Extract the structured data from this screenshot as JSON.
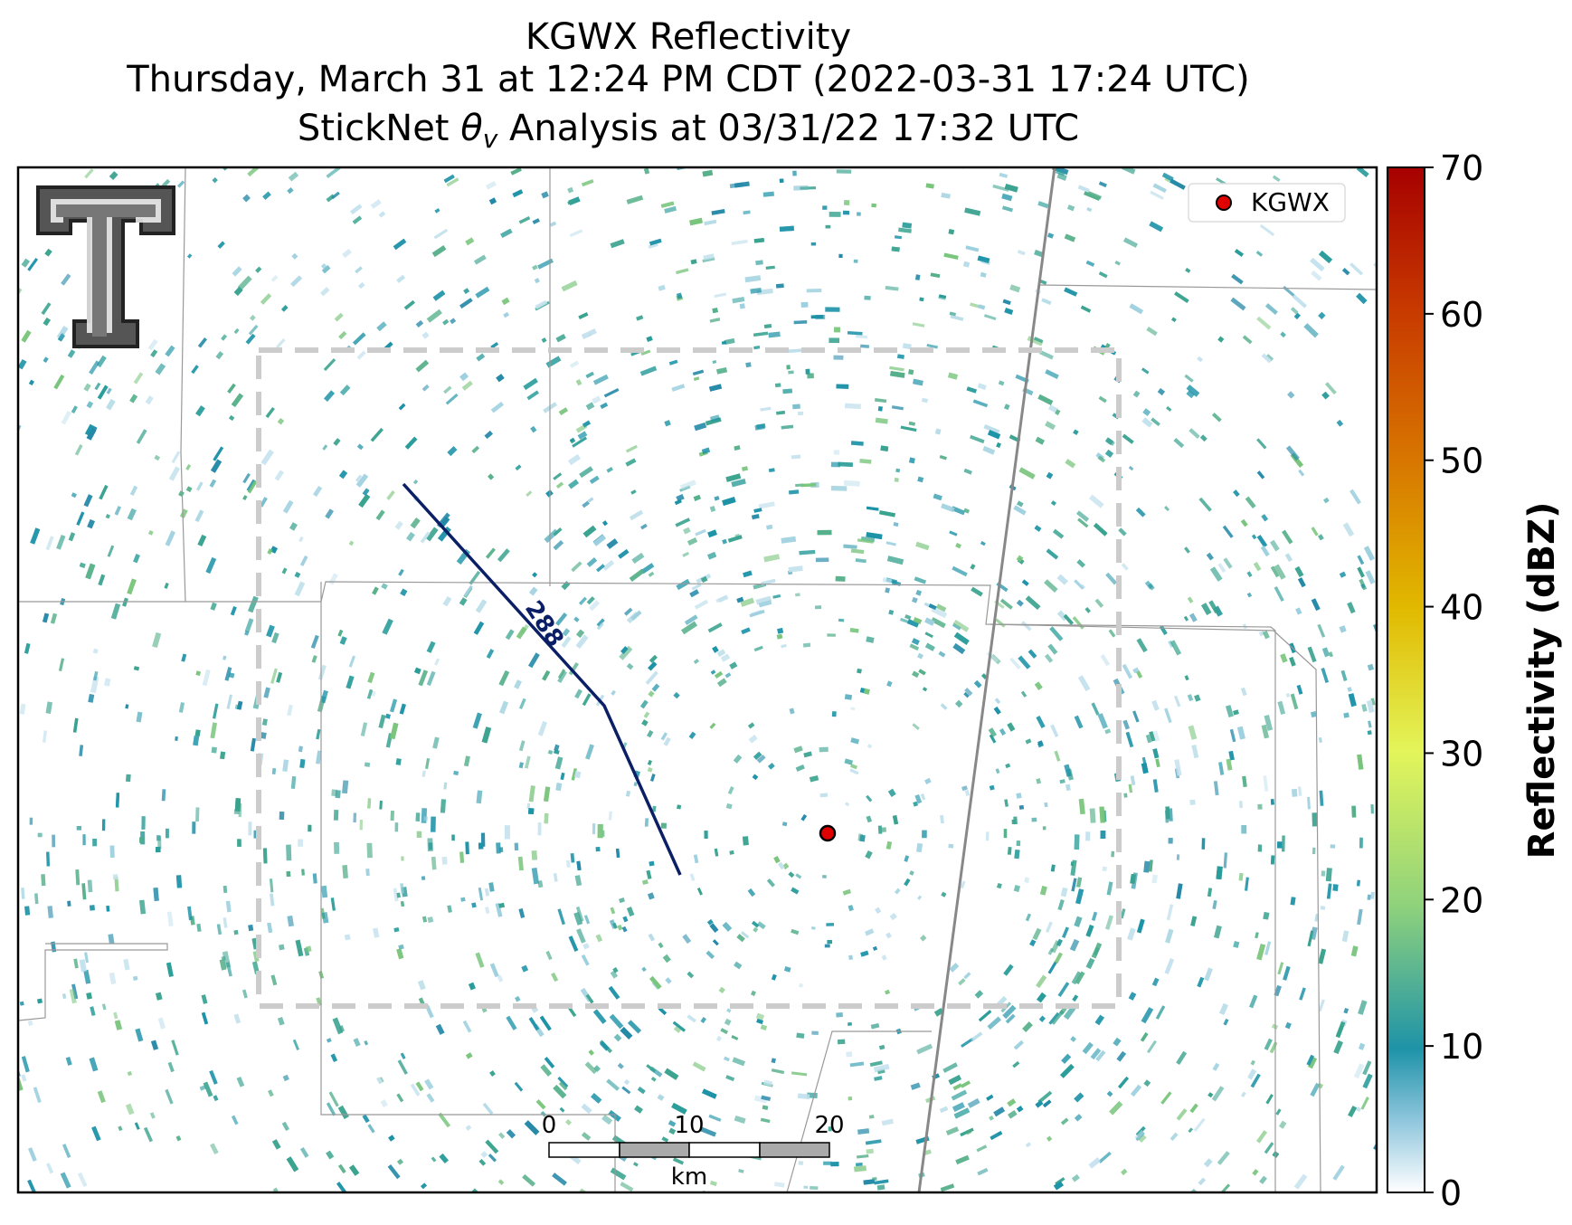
{
  "header": {
    "title": "KGWX Reflectivity",
    "subtitle": "Thursday, March 31 at 12:24 PM CDT (2022-03-31 17:24 UTC)",
    "analysis": {
      "prefix": "StickNet ",
      "symbol": "θ",
      "subscript": "v",
      "suffix": " Analysis at 03/31/22 17:32 UTC"
    }
  },
  "legend": {
    "label": "KGWX"
  },
  "contour": {
    "label": "288"
  },
  "scale_bar": {
    "labels": [
      "0",
      "10",
      "20"
    ],
    "unit": "km"
  },
  "colorbar": {
    "label": "Reflectivity (dBZ)",
    "lim": [
      0,
      70
    ],
    "ticks": [
      0,
      10,
      20,
      30,
      40,
      50,
      60,
      70
    ]
  }
}
